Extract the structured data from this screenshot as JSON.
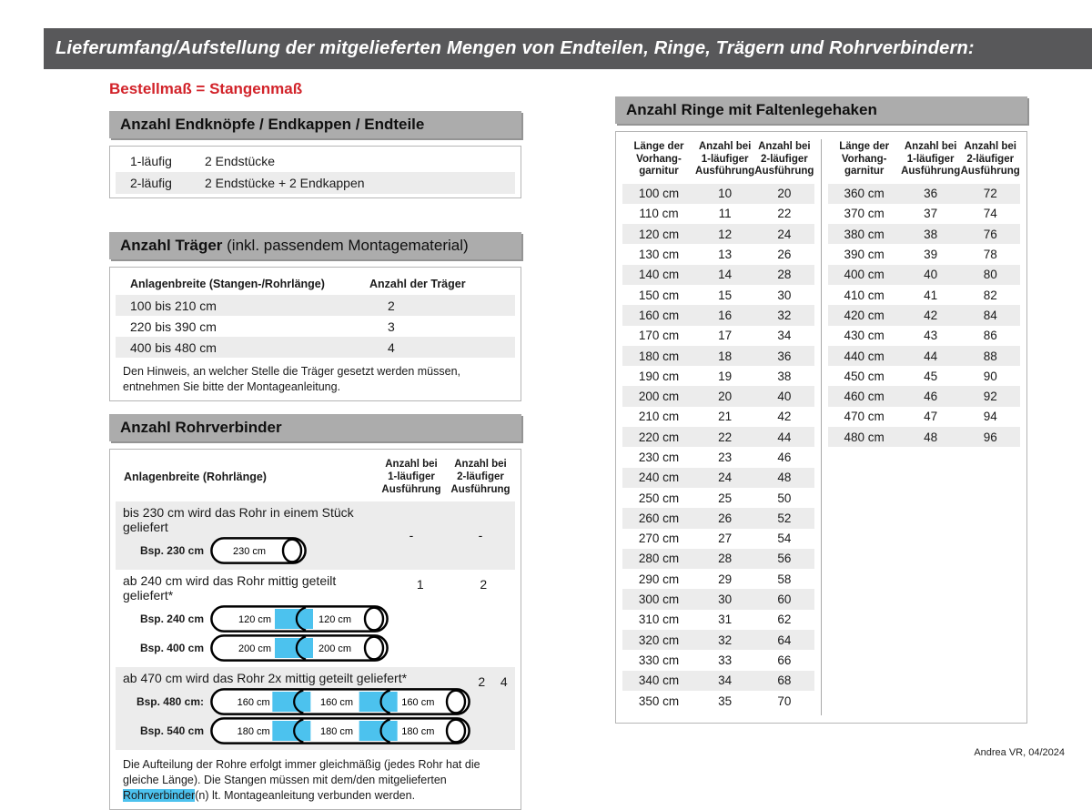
{
  "page": {
    "title": "Lieferumfang/Aufstellung der mitgelieferten Mengen von Endteilen, Ringe, Trägern und Rohrverbindern:",
    "subtitle": "Bestellmaß = Stangenmaß",
    "footer": "Andrea VR, 04/2024"
  },
  "colors": {
    "header_bar": "#58585a",
    "section_bar": "#acacac",
    "accent_red": "#d2232a",
    "row_stripe": "#ececec",
    "connector_blue": "#4cc2ee"
  },
  "end_pieces": {
    "heading": "Anzahl Endknöpfe / Endkappen / Endteile",
    "rows": [
      {
        "label": "1-läufig",
        "value": "2 Endstücke"
      },
      {
        "label": "2-läufig",
        "value": "2 Endstücke + 2 Endkappen"
      }
    ]
  },
  "traeger": {
    "heading_bold": "Anzahl Träger",
    "heading_normal": " (inkl. passendem Montagematerial)",
    "col_width": "Anlagenbreite (Stangen-/Rohrlänge)",
    "col_count": "Anzahl der Träger",
    "rows": [
      {
        "range": "100 bis 210 cm",
        "count": "2"
      },
      {
        "range": "220 bis 390 cm",
        "count": "3"
      },
      {
        "range": "400 bis 480 cm",
        "count": "4"
      }
    ],
    "note": "Den Hinweis, an welcher Stelle die Träger gesetzt werden müssen, entnehmen Sie bitte der Montageanleitung."
  },
  "rohrverbinder": {
    "heading": "Anzahl Rohrverbinder",
    "col_width": "Anlagenbreite (Rohrlänge)",
    "col1_lines": [
      "Anzahl bei",
      "1-läufiger",
      "Ausführung"
    ],
    "col2_lines": [
      "Anzahl bei",
      "2-läufiger",
      "Ausführung"
    ],
    "rows": [
      {
        "text": "bis 230 cm wird das Rohr in einem Stück geliefert",
        "v1": "-",
        "v2": "-",
        "pipes": [
          {
            "label": "Bsp. 230 cm",
            "segments": [
              "230 cm"
            ]
          }
        ]
      },
      {
        "text": "ab 240 cm wird das Rohr mittig geteilt geliefert*",
        "v1": "1",
        "v2": "2",
        "pipes": [
          {
            "label": "Bsp. 240 cm",
            "segments": [
              "120 cm",
              "120 cm"
            ]
          },
          {
            "label": "Bsp. 400 cm",
            "segments": [
              "200 cm",
              "200 cm"
            ]
          }
        ]
      },
      {
        "text": "ab 470 cm wird das Rohr 2x mittig geteilt geliefert*",
        "v1": "2",
        "v2": "4",
        "pipes": [
          {
            "label": "Bsp. 480 cm:",
            "segments": [
              "160 cm",
              "160 cm",
              "160 cm"
            ]
          },
          {
            "label": "Bsp. 540 cm",
            "segments": [
              "180 cm",
              "180 cm",
              "180 cm"
            ]
          }
        ]
      }
    ],
    "footnote": {
      "before": "Die Aufteilung der Rohre erfolgt immer gleichmäßig (jedes Rohr hat die gleiche Länge). Die Stangen müssen mit dem/den mitgelieferten ",
      "highlight": "Rohrverbinder",
      "after": "(n) lt. Montageanleitung verbunden werden."
    }
  },
  "ringe": {
    "heading": "Anzahl Ringe mit Faltenlegehaken",
    "col_headers": [
      [
        "Länge der",
        "Vorhang-",
        "garnitur"
      ],
      [
        "Anzahl bei",
        "1-läufiger",
        "Ausführung"
      ],
      [
        "Anzahl bei",
        "2-läufiger",
        "Ausführung"
      ]
    ],
    "table1": [
      [
        "100 cm",
        "10",
        "20"
      ],
      [
        "110 cm",
        "11",
        "22"
      ],
      [
        "120 cm",
        "12",
        "24"
      ],
      [
        "130 cm",
        "13",
        "26"
      ],
      [
        "140 cm",
        "14",
        "28"
      ],
      [
        "150 cm",
        "15",
        "30"
      ],
      [
        "160 cm",
        "16",
        "32"
      ],
      [
        "170 cm",
        "17",
        "34"
      ],
      [
        "180 cm",
        "18",
        "36"
      ],
      [
        "190 cm",
        "19",
        "38"
      ],
      [
        "200 cm",
        "20",
        "40"
      ],
      [
        "210 cm",
        "21",
        "42"
      ],
      [
        "220 cm",
        "22",
        "44"
      ],
      [
        "230 cm",
        "23",
        "46"
      ],
      [
        "240 cm",
        "24",
        "48"
      ],
      [
        "250 cm",
        "25",
        "50"
      ],
      [
        "260 cm",
        "26",
        "52"
      ],
      [
        "270 cm",
        "27",
        "54"
      ],
      [
        "280 cm",
        "28",
        "56"
      ],
      [
        "290 cm",
        "29",
        "58"
      ],
      [
        "300 cm",
        "30",
        "60"
      ],
      [
        "310 cm",
        "31",
        "62"
      ],
      [
        "320 cm",
        "32",
        "64"
      ],
      [
        "330 cm",
        "33",
        "66"
      ],
      [
        "340 cm",
        "34",
        "68"
      ],
      [
        "350 cm",
        "35",
        "70"
      ]
    ],
    "table2": [
      [
        "360 cm",
        "36",
        "72"
      ],
      [
        "370 cm",
        "37",
        "74"
      ],
      [
        "380 cm",
        "38",
        "76"
      ],
      [
        "390 cm",
        "39",
        "78"
      ],
      [
        "400 cm",
        "40",
        "80"
      ],
      [
        "410 cm",
        "41",
        "82"
      ],
      [
        "420 cm",
        "42",
        "84"
      ],
      [
        "430 cm",
        "43",
        "86"
      ],
      [
        "440 cm",
        "44",
        "88"
      ],
      [
        "450 cm",
        "45",
        "90"
      ],
      [
        "460 cm",
        "46",
        "92"
      ],
      [
        "470 cm",
        "47",
        "94"
      ],
      [
        "480 cm",
        "48",
        "96"
      ]
    ]
  }
}
